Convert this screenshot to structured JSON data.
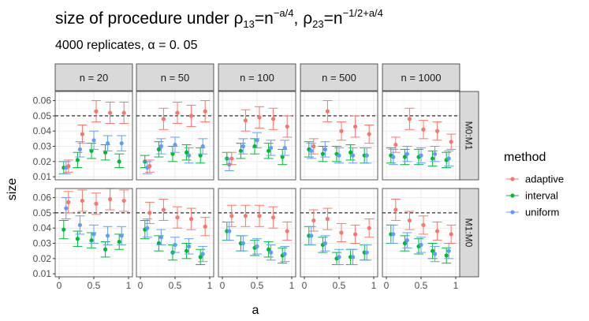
{
  "title": {
    "prefix": "size of procedure under ",
    "rho1": "ρ",
    "rho1_sub": "13",
    "eq1": "=n",
    "exp1": "−a/4",
    "sep": ", ",
    "rho2": "ρ",
    "rho2_sub": "23",
    "eq2": "=n",
    "exp2": "−1/2+a/4"
  },
  "subtitle": "4000 replicates, α = 0. 05",
  "chart_data": {
    "type": "scatter",
    "subtype": "pointrange faceted grid",
    "xlabel": "a",
    "ylabel": "size",
    "xlim": [
      0,
      1
    ],
    "ylim": [
      0.008,
      0.066
    ],
    "x_ticks": [
      "0",
      "0.5",
      "1"
    ],
    "y_ticks": [
      "0.01",
      "0.02",
      "0.03",
      "0.04",
      "0.05",
      "0.06"
    ],
    "reference_line": 0.05,
    "columns": [
      "n = 20",
      "n = 50",
      "n = 100",
      "n = 500",
      "n = 1000"
    ],
    "rows": [
      "M0:M1",
      "M1:M0"
    ],
    "legend": {
      "title": "method",
      "items": [
        {
          "name": "adaptive",
          "color": "#F8766D"
        },
        {
          "name": "interval",
          "color": "#00BA38"
        },
        {
          "name": "uniform",
          "color": "#619CFF"
        }
      ]
    },
    "x": [
      0.1,
      0.3,
      0.5,
      0.7,
      0.9
    ],
    "panels": [
      {
        "row": 0,
        "col": 0,
        "series": {
          "adaptive": {
            "values": [
              0.017,
              0.038,
              0.053,
              0.052,
              0.052
            ],
            "lo": [
              0.013,
              0.032,
              0.046,
              0.045,
              0.045
            ],
            "hi": [
              0.021,
              0.044,
              0.06,
              0.059,
              0.059
            ]
          },
          "interval": {
            "values": [
              0.016,
              0.021,
              0.027,
              0.026,
              0.02
            ],
            "lo": [
              0.012,
              0.016,
              0.022,
              0.021,
              0.016
            ],
            "hi": [
              0.02,
              0.026,
              0.032,
              0.031,
              0.025
            ]
          },
          "uniform": {
            "values": [
              0.016,
              0.028,
              0.034,
              0.032,
              0.032
            ],
            "lo": [
              0.012,
              0.023,
              0.028,
              0.027,
              0.027
            ],
            "hi": [
              0.02,
              0.033,
              0.04,
              0.037,
              0.037
            ]
          }
        }
      },
      {
        "row": 0,
        "col": 1,
        "series": {
          "adaptive": {
            "values": [
              0.017,
              0.048,
              0.052,
              0.05,
              0.053
            ],
            "lo": [
              0.013,
              0.041,
              0.045,
              0.043,
              0.046
            ],
            "hi": [
              0.021,
              0.055,
              0.059,
              0.057,
              0.06
            ]
          },
          "interval": {
            "values": [
              0.02,
              0.028,
              0.025,
              0.026,
              0.024
            ],
            "lo": [
              0.016,
              0.023,
              0.02,
              0.021,
              0.019
            ],
            "hi": [
              0.024,
              0.033,
              0.03,
              0.031,
              0.029
            ]
          },
          "uniform": {
            "values": [
              0.016,
              0.03,
              0.031,
              0.024,
              0.03
            ],
            "lo": [
              0.012,
              0.025,
              0.026,
              0.019,
              0.025
            ],
            "hi": [
              0.02,
              0.035,
              0.036,
              0.029,
              0.035
            ]
          }
        }
      },
      {
        "row": 0,
        "col": 2,
        "series": {
          "adaptive": {
            "values": [
              0.022,
              0.047,
              0.049,
              0.048,
              0.043
            ],
            "lo": [
              0.018,
              0.04,
              0.042,
              0.041,
              0.036
            ],
            "hi": [
              0.026,
              0.054,
              0.056,
              0.055,
              0.05
            ]
          },
          "interval": {
            "values": [
              0.022,
              0.027,
              0.03,
              0.027,
              0.023
            ],
            "lo": [
              0.018,
              0.022,
              0.025,
              0.022,
              0.018
            ],
            "hi": [
              0.026,
              0.032,
              0.035,
              0.032,
              0.028
            ]
          },
          "uniform": {
            "values": [
              0.018,
              0.03,
              0.034,
              0.029,
              0.029
            ],
            "lo": [
              0.014,
              0.025,
              0.029,
              0.024,
              0.024
            ],
            "hi": [
              0.022,
              0.035,
              0.039,
              0.034,
              0.034
            ]
          }
        }
      },
      {
        "row": 0,
        "col": 3,
        "series": {
          "adaptive": {
            "values": [
              0.03,
              0.053,
              0.04,
              0.043,
              0.038
            ],
            "lo": [
              0.025,
              0.046,
              0.034,
              0.036,
              0.032
            ],
            "hi": [
              0.035,
              0.06,
              0.046,
              0.05,
              0.044
            ]
          },
          "interval": {
            "values": [
              0.028,
              0.025,
              0.025,
              0.026,
              0.024
            ],
            "lo": [
              0.023,
              0.02,
              0.02,
              0.021,
              0.019
            ],
            "hi": [
              0.033,
              0.03,
              0.03,
              0.031,
              0.029
            ]
          },
          "uniform": {
            "values": [
              0.027,
              0.028,
              0.024,
              0.024,
              0.024
            ],
            "lo": [
              0.022,
              0.023,
              0.019,
              0.019,
              0.019
            ],
            "hi": [
              0.032,
              0.033,
              0.029,
              0.029,
              0.029
            ]
          }
        }
      },
      {
        "row": 0,
        "col": 4,
        "series": {
          "adaptive": {
            "values": [
              0.031,
              0.048,
              0.041,
              0.04,
              0.033
            ],
            "lo": [
              0.026,
              0.041,
              0.035,
              0.034,
              0.028
            ],
            "hi": [
              0.036,
              0.055,
              0.047,
              0.046,
              0.038
            ]
          },
          "interval": {
            "values": [
              0.024,
              0.023,
              0.023,
              0.022,
              0.021
            ],
            "lo": [
              0.019,
              0.018,
              0.018,
              0.017,
              0.016
            ],
            "hi": [
              0.029,
              0.028,
              0.028,
              0.027,
              0.026
            ]
          },
          "uniform": {
            "values": [
              0.023,
              0.025,
              0.024,
              0.025,
              0.022
            ],
            "lo": [
              0.018,
              0.02,
              0.019,
              0.02,
              0.017
            ],
            "hi": [
              0.028,
              0.03,
              0.029,
              0.03,
              0.027
            ]
          }
        }
      },
      {
        "row": 1,
        "col": 0,
        "series": {
          "adaptive": {
            "values": [
              0.057,
              0.058,
              0.056,
              0.059,
              0.058
            ],
            "lo": [
              0.05,
              0.051,
              0.049,
              0.052,
              0.051
            ],
            "hi": [
              0.064,
              0.065,
              0.063,
              0.066,
              0.065
            ]
          },
          "interval": {
            "values": [
              0.039,
              0.033,
              0.032,
              0.026,
              0.031
            ],
            "lo": [
              0.033,
              0.028,
              0.027,
              0.021,
              0.026
            ],
            "hi": [
              0.045,
              0.038,
              0.037,
              0.031,
              0.036
            ]
          },
          "uniform": {
            "values": [
              0.053,
              0.042,
              0.036,
              0.035,
              0.035
            ],
            "lo": [
              0.046,
              0.036,
              0.03,
              0.029,
              0.029
            ],
            "hi": [
              0.06,
              0.048,
              0.042,
              0.041,
              0.041
            ]
          }
        }
      },
      {
        "row": 1,
        "col": 1,
        "series": {
          "adaptive": {
            "values": [
              0.05,
              0.052,
              0.047,
              0.046,
              0.041
            ],
            "lo": [
              0.043,
              0.045,
              0.04,
              0.039,
              0.035
            ],
            "hi": [
              0.057,
              0.059,
              0.054,
              0.053,
              0.047
            ]
          },
          "interval": {
            "values": [
              0.039,
              0.03,
              0.024,
              0.025,
              0.021
            ],
            "lo": [
              0.033,
              0.025,
              0.019,
              0.02,
              0.016
            ],
            "hi": [
              0.045,
              0.035,
              0.029,
              0.03,
              0.026
            ]
          },
          "uniform": {
            "values": [
              0.04,
              0.034,
              0.029,
              0.028,
              0.023
            ],
            "lo": [
              0.034,
              0.029,
              0.024,
              0.023,
              0.018
            ],
            "hi": [
              0.046,
              0.039,
              0.034,
              0.033,
              0.028
            ]
          }
        }
      },
      {
        "row": 1,
        "col": 2,
        "series": {
          "adaptive": {
            "values": [
              0.048,
              0.048,
              0.048,
              0.047,
              0.038
            ],
            "lo": [
              0.041,
              0.041,
              0.041,
              0.04,
              0.032
            ],
            "hi": [
              0.055,
              0.055,
              0.055,
              0.054,
              0.044
            ]
          },
          "interval": {
            "values": [
              0.038,
              0.03,
              0.027,
              0.026,
              0.022
            ],
            "lo": [
              0.032,
              0.025,
              0.022,
              0.021,
              0.017
            ],
            "hi": [
              0.044,
              0.035,
              0.032,
              0.031,
              0.027
            ]
          },
          "uniform": {
            "values": [
              0.038,
              0.03,
              0.028,
              0.024,
              0.023
            ],
            "lo": [
              0.032,
              0.025,
              0.023,
              0.019,
              0.018
            ],
            "hi": [
              0.044,
              0.035,
              0.033,
              0.029,
              0.028
            ]
          }
        }
      },
      {
        "row": 1,
        "col": 3,
        "series": {
          "adaptive": {
            "values": [
              0.045,
              0.046,
              0.037,
              0.036,
              0.04
            ],
            "lo": [
              0.038,
              0.039,
              0.031,
              0.03,
              0.034
            ],
            "hi": [
              0.052,
              0.053,
              0.043,
              0.042,
              0.046
            ]
          },
          "interval": {
            "values": [
              0.035,
              0.029,
              0.02,
              0.021,
              0.024
            ],
            "lo": [
              0.029,
              0.024,
              0.016,
              0.016,
              0.019
            ],
            "hi": [
              0.041,
              0.034,
              0.024,
              0.026,
              0.029
            ]
          },
          "uniform": {
            "values": [
              0.035,
              0.03,
              0.021,
              0.021,
              0.024
            ],
            "lo": [
              0.029,
              0.025,
              0.016,
              0.016,
              0.019
            ],
            "hi": [
              0.041,
              0.035,
              0.026,
              0.026,
              0.029
            ]
          }
        }
      },
      {
        "row": 1,
        "col": 4,
        "series": {
          "adaptive": {
            "values": [
              0.052,
              0.045,
              0.042,
              0.038,
              0.036
            ],
            "lo": [
              0.045,
              0.039,
              0.036,
              0.032,
              0.03
            ],
            "hi": [
              0.059,
              0.051,
              0.048,
              0.044,
              0.042
            ]
          },
          "interval": {
            "values": [
              0.036,
              0.03,
              0.028,
              0.025,
              0.022
            ],
            "lo": [
              0.03,
              0.025,
              0.023,
              0.02,
              0.017
            ],
            "hi": [
              0.042,
              0.035,
              0.033,
              0.03,
              0.027
            ]
          },
          "uniform": {
            "values": [
              0.036,
              0.032,
              0.029,
              0.023,
              0.025
            ],
            "lo": [
              0.03,
              0.027,
              0.024,
              0.018,
              0.02
            ],
            "hi": [
              0.042,
              0.037,
              0.034,
              0.028,
              0.03
            ]
          }
        }
      }
    ]
  }
}
